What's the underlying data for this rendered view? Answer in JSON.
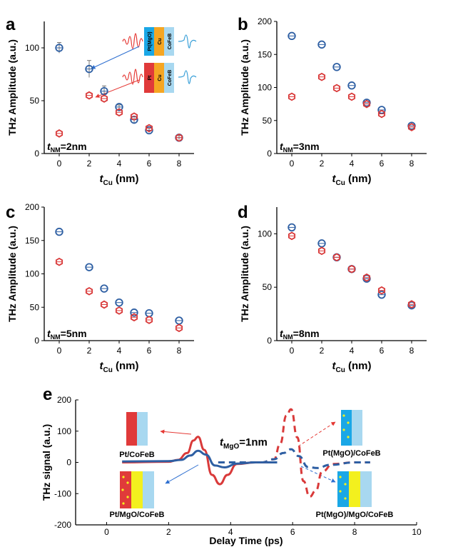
{
  "colors": {
    "blue": "#2e5fa3",
    "red": "#d93a3a",
    "cyan_layer": "#1aa7e6",
    "light_blue_layer": "#a8d8f0",
    "red_layer": "#e03a3a",
    "orange_layer": "#f5a623",
    "yellow_layer": "#f3f01e",
    "wave_red": "#e53935",
    "wave_blue": "#3aa0d8"
  },
  "chart_data": [
    {
      "panel": "a",
      "type": "scatter",
      "xlabel_main": "t",
      "xlabel_sub": "Cu",
      "xlabel_rest": " (nm)",
      "ylabel": "THz Amplitude (a.u.)",
      "annotation_main": "t",
      "annotation_sub": "NM",
      "annotation_rest": "=2nm",
      "xlim": [
        -1,
        9
      ],
      "ylim": [
        0,
        125
      ],
      "xticks": [
        0,
        2,
        4,
        6,
        8
      ],
      "yticks": [
        0,
        50,
        100
      ],
      "inset_top_layers": [
        "Pt(MgO)",
        "Cu",
        "CoFeB"
      ],
      "inset_bottom_layers": [
        "Pt",
        "Cu",
        "CoFeB"
      ],
      "series": [
        {
          "marker": "circle",
          "color": "blue",
          "x": [
            0,
            2,
            3,
            4,
            5,
            6,
            8
          ],
          "y": [
            100,
            80,
            59,
            44,
            32,
            22,
            15
          ],
          "err": [
            5,
            8,
            5,
            2,
            3,
            2,
            2
          ]
        },
        {
          "marker": "hexagon",
          "color": "red",
          "x": [
            0,
            2,
            3,
            4,
            5,
            6,
            8
          ],
          "y": [
            19,
            55,
            52,
            39,
            35,
            24,
            15
          ]
        }
      ]
    },
    {
      "panel": "b",
      "type": "scatter",
      "xlabel_main": "t",
      "xlabel_sub": "Cu",
      "xlabel_rest": " (nm)",
      "ylabel": "THz Amplitude (a.u.)",
      "annotation_main": "t",
      "annotation_sub": "NM",
      "annotation_rest": "=3nm",
      "xlim": [
        -1,
        9
      ],
      "ylim": [
        0,
        200
      ],
      "xticks": [
        0,
        2,
        4,
        6,
        8
      ],
      "yticks": [
        0,
        50,
        100,
        150,
        200
      ],
      "series": [
        {
          "marker": "circle",
          "color": "blue",
          "x": [
            0,
            2,
            3,
            4,
            5,
            6,
            8
          ],
          "y": [
            178,
            165,
            131,
            103,
            77,
            66,
            42
          ]
        },
        {
          "marker": "hexagon",
          "color": "red",
          "x": [
            0,
            2,
            3,
            4,
            5,
            6,
            8
          ],
          "y": [
            86,
            116,
            99,
            86,
            75,
            60,
            40
          ]
        }
      ]
    },
    {
      "panel": "c",
      "type": "scatter",
      "xlabel_main": "t",
      "xlabel_sub": "Cu",
      "xlabel_rest": " (nm)",
      "ylabel": "THz Amplitude (a.u.)",
      "annotation_main": "t",
      "annotation_sub": "NM",
      "annotation_rest": "=5nm",
      "xlim": [
        -1,
        9
      ],
      "ylim": [
        0,
        200
      ],
      "xticks": [
        0,
        2,
        4,
        6,
        8
      ],
      "yticks": [
        0,
        50,
        100,
        150,
        200
      ],
      "series": [
        {
          "marker": "circle",
          "color": "blue",
          "x": [
            0,
            2,
            3,
            4,
            5,
            6,
            8
          ],
          "y": [
            163,
            110,
            78,
            57,
            42,
            41,
            30
          ]
        },
        {
          "marker": "hexagon",
          "color": "red",
          "x": [
            0,
            2,
            3,
            4,
            5,
            6,
            8
          ],
          "y": [
            118,
            74,
            54,
            45,
            35,
            31,
            19
          ]
        }
      ]
    },
    {
      "panel": "d",
      "type": "scatter",
      "xlabel_main": "t",
      "xlabel_sub": "Cu",
      "xlabel_rest": " (nm)",
      "ylabel": "THz Amplitude (a.u.)",
      "annotation_main": "t",
      "annotation_sub": "NM",
      "annotation_rest": "=8nm",
      "xlim": [
        -1,
        9
      ],
      "ylim": [
        0,
        125
      ],
      "xticks": [
        0,
        2,
        4,
        6,
        8
      ],
      "yticks": [
        0,
        50,
        100
      ],
      "series": [
        {
          "marker": "circle",
          "color": "blue",
          "x": [
            0,
            2,
            3,
            4,
            5,
            6,
            8
          ],
          "y": [
            106,
            91,
            78,
            67,
            58,
            43,
            33
          ]
        },
        {
          "marker": "hexagon",
          "color": "red",
          "x": [
            0,
            2,
            3,
            4,
            5,
            6,
            8
          ],
          "y": [
            98,
            84,
            78,
            67,
            59,
            47,
            34
          ]
        }
      ]
    },
    {
      "panel": "e",
      "type": "line",
      "xlabel": "Delay Time (ps)",
      "ylabel": "THz signal (a.u.)",
      "annotation_main": "t",
      "annotation_sub": "MgO",
      "annotation_rest": "=1nm",
      "xlim": [
        -1,
        10
      ],
      "ylim": [
        -200,
        200
      ],
      "xticks": [
        0,
        2,
        4,
        6,
        8,
        10
      ],
      "yticks": [
        -200,
        -100,
        0,
        100,
        200
      ],
      "labels": [
        "Pt/CoFeB",
        "Pt/MgO/CoFeB",
        "Pt(MgO)/CoFeB",
        "Pt(MgO)/MgO/CoFeB"
      ],
      "series": [
        {
          "color": "red",
          "style": "solid",
          "x": [
            0.5,
            2.0,
            2.3,
            2.6,
            2.8,
            2.95,
            3.15,
            3.4,
            3.65,
            3.9,
            4.2,
            4.8,
            5.5
          ],
          "y": [
            0,
            2,
            8,
            30,
            70,
            82,
            40,
            -40,
            -70,
            -40,
            -5,
            0,
            0
          ]
        },
        {
          "color": "blue",
          "style": "solid",
          "x": [
            0.5,
            2.0,
            2.4,
            2.7,
            2.95,
            3.2,
            3.5,
            3.8,
            4.2,
            4.8,
            5.5
          ],
          "y": [
            3,
            4,
            8,
            22,
            37,
            25,
            -10,
            -16,
            -4,
            0,
            0
          ]
        },
        {
          "color": "red",
          "style": "dashed",
          "x": [
            3.6,
            5.0,
            5.4,
            5.6,
            5.8,
            5.95,
            6.15,
            6.35,
            6.55,
            6.75,
            6.95,
            7.3,
            8.0,
            8.5
          ],
          "y": [
            0,
            0,
            10,
            60,
            150,
            170,
            80,
            -60,
            -110,
            -90,
            -30,
            -5,
            0,
            0
          ]
        },
        {
          "color": "blue",
          "style": "dashed",
          "x": [
            3.6,
            5.0,
            5.4,
            5.7,
            5.95,
            6.2,
            6.5,
            6.8,
            7.2,
            8.0,
            8.5
          ],
          "y": [
            0,
            0,
            10,
            30,
            42,
            20,
            -15,
            -18,
            -8,
            0,
            0
          ]
        }
      ]
    }
  ]
}
